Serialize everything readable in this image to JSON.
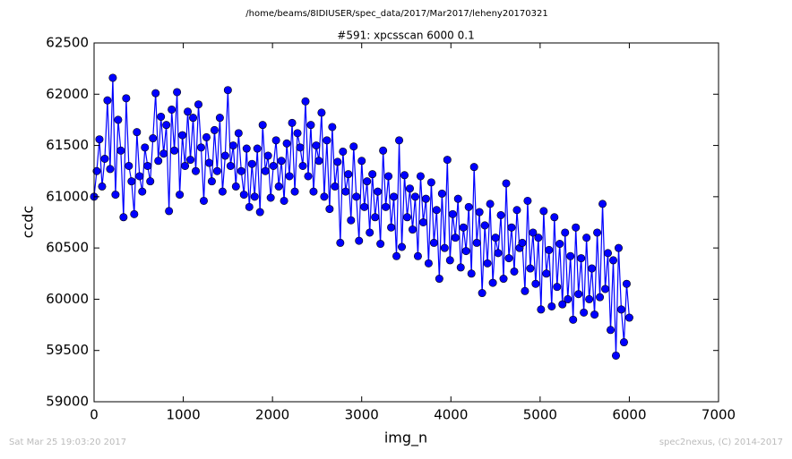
{
  "chart_data": {
    "type": "line",
    "suptitle": "/home/beams/8IDIUSER/spec_data/2017/Mar2017/leheny20170321",
    "title": "#591: xpcsscan 6000 0.1",
    "xlabel": "img_n",
    "ylabel": "ccdc",
    "footer_left": "Sat Mar 25 19:03:20 2017",
    "footer_right": "spec2nexus, (C) 2014-2017",
    "xlim": [
      0,
      7000
    ],
    "xticks": [
      0,
      1000,
      2000,
      3000,
      4000,
      5000,
      6000,
      7000
    ],
    "ylim": [
      59000,
      62500
    ],
    "yticks": [
      59000,
      59500,
      60000,
      60500,
      61000,
      61500,
      62000,
      62500
    ],
    "x": [
      0,
      30,
      60,
      90,
      120,
      150,
      180,
      210,
      240,
      270,
      300,
      330,
      360,
      390,
      420,
      450,
      480,
      510,
      540,
      570,
      600,
      630,
      660,
      690,
      720,
      750,
      780,
      810,
      840,
      870,
      900,
      930,
      960,
      990,
      1020,
      1050,
      1080,
      1110,
      1140,
      1170,
      1200,
      1230,
      1260,
      1290,
      1320,
      1350,
      1380,
      1410,
      1440,
      1470,
      1500,
      1530,
      1560,
      1590,
      1620,
      1650,
      1680,
      1710,
      1740,
      1770,
      1800,
      1830,
      1860,
      1890,
      1920,
      1950,
      1980,
      2010,
      2040,
      2070,
      2100,
      2130,
      2160,
      2190,
      2220,
      2250,
      2280,
      2310,
      2340,
      2370,
      2400,
      2430,
      2460,
      2490,
      2520,
      2550,
      2580,
      2610,
      2640,
      2670,
      2700,
      2730,
      2760,
      2790,
      2820,
      2850,
      2880,
      2910,
      2940,
      2970,
      3000,
      3030,
      3060,
      3090,
      3120,
      3150,
      3180,
      3210,
      3240,
      3270,
      3300,
      3330,
      3360,
      3390,
      3420,
      3450,
      3480,
      3510,
      3540,
      3570,
      3600,
      3630,
      3660,
      3690,
      3720,
      3750,
      3780,
      3810,
      3840,
      3870,
      3900,
      3930,
      3960,
      3990,
      4020,
      4050,
      4080,
      4110,
      4140,
      4170,
      4200,
      4230,
      4260,
      4290,
      4320,
      4350,
      4380,
      4410,
      4440,
      4470,
      4500,
      4530,
      4560,
      4590,
      4620,
      4650,
      4680,
      4710,
      4740,
      4770,
      4800,
      4830,
      4860,
      4890,
      4920,
      4950,
      4980,
      5010,
      5040,
      5070,
      5100,
      5130,
      5160,
      5190,
      5220,
      5250,
      5280,
      5310,
      5340,
      5370,
      5400,
      5430,
      5460,
      5490,
      5520,
      5550,
      5580,
      5610,
      5640,
      5670,
      5700,
      5730,
      5760,
      5790,
      5820,
      5850,
      5880,
      5910,
      5940,
      5970,
      6000
    ],
    "series": [
      {
        "color": "#0000ff",
        "values": [
          61000,
          61250,
          61560,
          61100,
          61370,
          61940,
          61270,
          62160,
          61020,
          61750,
          61450,
          60800,
          61960,
          61300,
          61150,
          60830,
          61630,
          61200,
          61050,
          61480,
          61300,
          61150,
          61570,
          62010,
          61350,
          61780,
          61420,
          61700,
          60860,
          61850,
          61450,
          62020,
          61020,
          61600,
          61300,
          61830,
          61360,
          61770,
          61250,
          61900,
          61480,
          60960,
          61580,
          61330,
          61150,
          61650,
          61250,
          61770,
          61050,
          61400,
          62040,
          61300,
          61500,
          61100,
          61620,
          61250,
          61020,
          61470,
          60900,
          61320,
          61000,
          61470,
          60850,
          61700,
          61250,
          61400,
          60990,
          61300,
          61550,
          61100,
          61350,
          60960,
          61520,
          61200,
          61720,
          61050,
          61620,
          61480,
          61300,
          61930,
          61200,
          61700,
          61050,
          61500,
          61350,
          61820,
          61000,
          61550,
          60880,
          61680,
          61100,
          61340,
          60550,
          61440,
          61050,
          61220,
          60770,
          61490,
          61000,
          60570,
          61350,
          60900,
          61150,
          60650,
          61220,
          60800,
          61050,
          60540,
          61450,
          60900,
          61200,
          60700,
          61000,
          60420,
          61550,
          60510,
          61210,
          60800,
          61080,
          60680,
          61000,
          60420,
          61200,
          60750,
          60980,
          60350,
          61140,
          60550,
          60870,
          60200,
          61030,
          60500,
          61360,
          60380,
          60830,
          60600,
          60980,
          60310,
          60700,
          60470,
          60900,
          60250,
          61290,
          60550,
          60850,
          60060,
          60720,
          60350,
          60930,
          60160,
          60600,
          60450,
          60820,
          60200,
          61130,
          60400,
          60700,
          60270,
          60870,
          60500,
          60550,
          60080,
          60960,
          60300,
          60650,
          60150,
          60600,
          59900,
          60860,
          60250,
          60480,
          59930,
          60800,
          60120,
          60540,
          59950,
          60650,
          60000,
          60420,
          59800,
          60700,
          60050,
          60400,
          59870,
          60600,
          60000,
          60300,
          59850,
          60650,
          60020,
          60930,
          60100,
          60450,
          59700,
          60380,
          59450,
          60500,
          59900,
          59580,
          60150,
          59820
        ]
      }
    ]
  }
}
